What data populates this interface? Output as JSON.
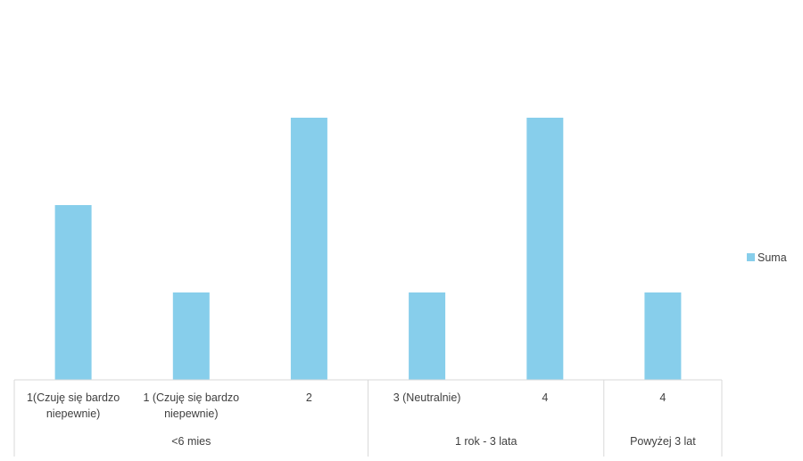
{
  "chart_data": {
    "type": "bar",
    "categories": [
      [
        "1(Czuję się bardzo",
        "niepewnie)"
      ],
      [
        "1 (Czuję się bardzo",
        "niepewnie)"
      ],
      [
        "2"
      ],
      [
        "3 (Neutralnie)"
      ],
      [
        "4"
      ],
      [
        "4"
      ]
    ],
    "groups": [
      {
        "label": "<6 mies",
        "count": 3
      },
      {
        "label": "1 rok - 3 lata",
        "count": 2
      },
      {
        "label": "Powyżej 3 lat",
        "count": 1
      }
    ],
    "series": [
      {
        "name": "Suma",
        "values": [
          2,
          1,
          3,
          1,
          3,
          1
        ],
        "color": "#87CEEB"
      }
    ],
    "ylim": [
      0,
      4
    ],
    "gridlines": false,
    "legend": {
      "position": "right",
      "label": "Suma"
    },
    "title": "",
    "xlabel": "",
    "ylabel": ""
  }
}
